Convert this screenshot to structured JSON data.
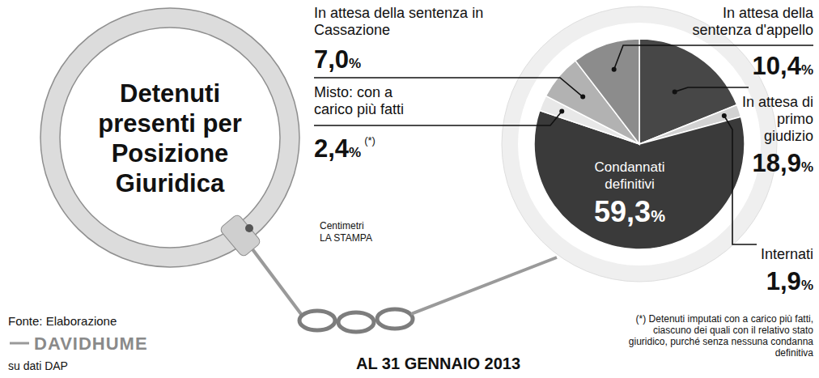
{
  "chart_data": {
    "type": "pie",
    "title": "Detenuti presenti per Posizione Giuridica",
    "subtitle": "AL 31 GENNAIO 2013",
    "categories": [
      "In attesa di primo giudizio",
      "Internati",
      "Condannati definitivi",
      "Misto: con a carico più fatti",
      "In attesa della sentenza in Cassazione",
      "In attesa della sentenza d'appello"
    ],
    "values": [
      18.9,
      1.9,
      59.3,
      2.4,
      7.0,
      10.4
    ],
    "value_labels": [
      "18,9%",
      "1,9%",
      "59,3%",
      "2,4%",
      "7,0%",
      "10,4%"
    ],
    "colors": [
      "#474747",
      "#d2d2d2",
      "#3a3a3a",
      "#e8e8e8",
      "#b2b2b2",
      "#8c8c8c"
    ],
    "data_labels": true,
    "annotations": {
      "note_marker": "(*)",
      "note": "(*) Detenuti imputati con a carico più fatti, ciascuno dei quali con il relativo stato giuridico, purché senza nessuna condanna definitiva",
      "source": "Fonte: Elaborazione",
      "source_name": "DAVIDHUME",
      "source_data": "su dati DAP",
      "credit": "Centimetri",
      "credit_name": "LA STAMPA"
    }
  }
}
